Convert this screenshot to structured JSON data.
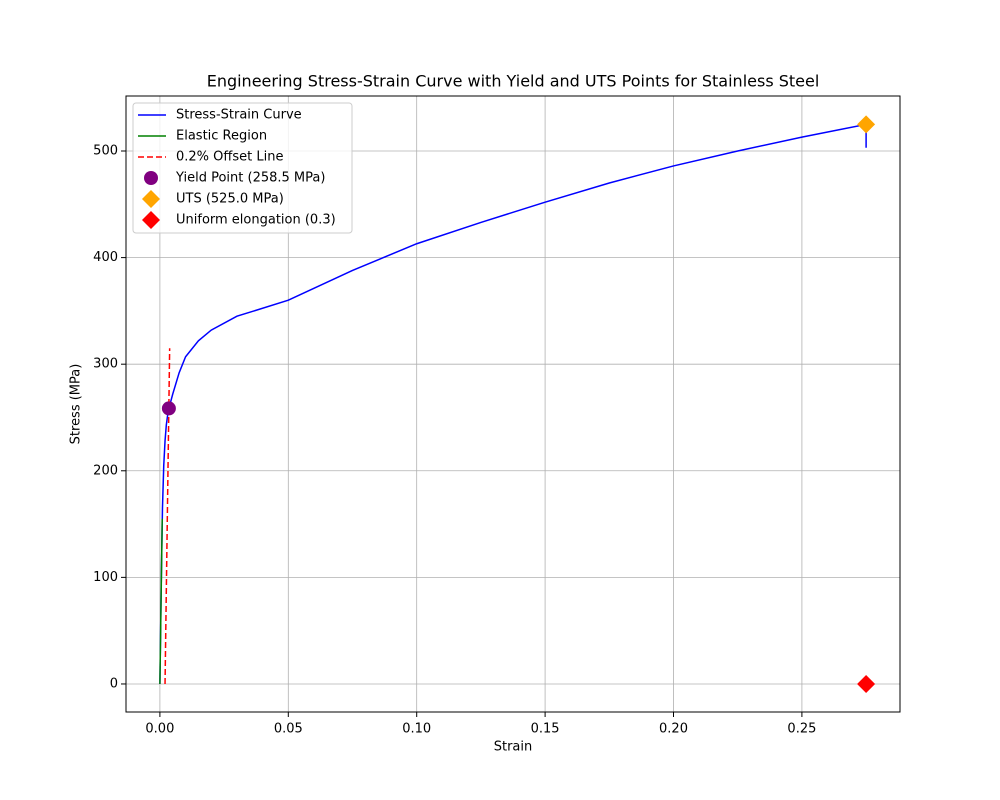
{
  "chart_data": {
    "type": "line",
    "title": "Engineering Stress-Strain Curve with Yield and UTS Points for Stainless Steel",
    "xlabel": "Strain",
    "ylabel": "Stress (MPa)",
    "xlim": [
      -0.0132,
      0.2882
    ],
    "ylim": [
      -26.3,
      551.6
    ],
    "xticks": [
      {
        "value": 0,
        "label": "0.00"
      },
      {
        "value": 0.05,
        "label": "0.05"
      },
      {
        "value": 0.1,
        "label": "0.10"
      },
      {
        "value": 0.15,
        "label": "0.15"
      },
      {
        "value": 0.2,
        "label": "0.20"
      },
      {
        "value": 0.25,
        "label": "0.25"
      }
    ],
    "yticks": [
      0,
      100,
      200,
      300,
      400,
      500
    ],
    "grid": true,
    "legend": "upper left",
    "series": [
      {
        "name": "Stress-Strain Curve",
        "kind": "line",
        "color": "#0000ff",
        "linestyle": "solid",
        "x": [
          0,
          0.0005,
          0.001,
          0.0015,
          0.002,
          0.0025,
          0.003,
          0.0035,
          0.005,
          0.0075,
          0.01,
          0.015,
          0.02,
          0.03,
          0.05,
          0.075,
          0.1,
          0.125,
          0.15,
          0.175,
          0.2,
          0.225,
          0.25,
          0.275,
          0.275
        ],
        "values": [
          0,
          90,
          165,
          205,
          228,
          243,
          252,
          258.5,
          272,
          292,
          307,
          322,
          332,
          345,
          360,
          388,
          413,
          433,
          452,
          470,
          486,
          500,
          513,
          525,
          503
        ]
      },
      {
        "name": "Elastic Region",
        "kind": "line",
        "color": "#008000",
        "linestyle": "solid",
        "x": [
          0,
          0.0009
        ],
        "values": [
          0,
          155
        ]
      },
      {
        "name": "0.2% Offset Line",
        "kind": "line",
        "color": "#ff0000",
        "linestyle": "dashed",
        "x": [
          0.002,
          0.0038
        ],
        "values": [
          0,
          315
        ]
      },
      {
        "name": "Yield Point (258.5 MPa)",
        "kind": "scatter",
        "marker": "circle",
        "color": "#800080",
        "x": [
          0.0035
        ],
        "values": [
          258.5
        ]
      },
      {
        "name": "UTS (525.0 MPa)",
        "kind": "scatter",
        "marker": "diamond",
        "color": "#ffa500",
        "x": [
          0.275
        ],
        "values": [
          525
        ]
      },
      {
        "name": "Uniform elongation (0.3)",
        "kind": "scatter",
        "marker": "diamond",
        "color": "#ff0000",
        "x": [
          0.275
        ],
        "values": [
          0
        ]
      }
    ]
  }
}
